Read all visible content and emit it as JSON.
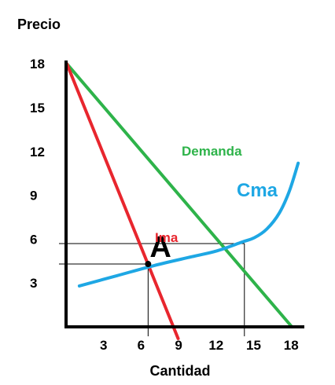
{
  "chart_data": {
    "type": "line",
    "ylabel": "Precio",
    "xlabel": "Cantidad",
    "xlim": [
      0,
      19
    ],
    "ylim": [
      0,
      18.5
    ],
    "x_ticks": [
      3,
      6,
      9,
      12,
      15,
      18
    ],
    "y_ticks": [
      3,
      6,
      9,
      12,
      15,
      18
    ],
    "grid": false,
    "series": [
      {
        "name": "Demanda",
        "color": "#2eb34a",
        "points": [
          [
            0,
            18
          ],
          [
            18,
            0
          ]
        ]
      },
      {
        "name": "Ima",
        "color": "#e8262e",
        "points": [
          [
            0,
            18
          ],
          [
            8.9,
            -0.8
          ]
        ]
      },
      {
        "name": "Cma",
        "color": "#1ea7e4",
        "points": [
          [
            1,
            2.8
          ],
          [
            4,
            3.5
          ],
          [
            7,
            4.2
          ],
          [
            10,
            4.8
          ],
          [
            12,
            5.2
          ],
          [
            14,
            5.8
          ],
          [
            15,
            6.1
          ],
          [
            16,
            6.7
          ],
          [
            17,
            7.8
          ],
          [
            17.8,
            9.3
          ],
          [
            18.5,
            11.2
          ]
        ]
      }
    ],
    "annotations": [
      {
        "text": "A",
        "x": 6.5,
        "y": 4.3
      }
    ],
    "reference_lines": [
      {
        "x": 14.2,
        "y": 5.7
      },
      {
        "x": 6.5,
        "y": 4.3
      }
    ]
  }
}
